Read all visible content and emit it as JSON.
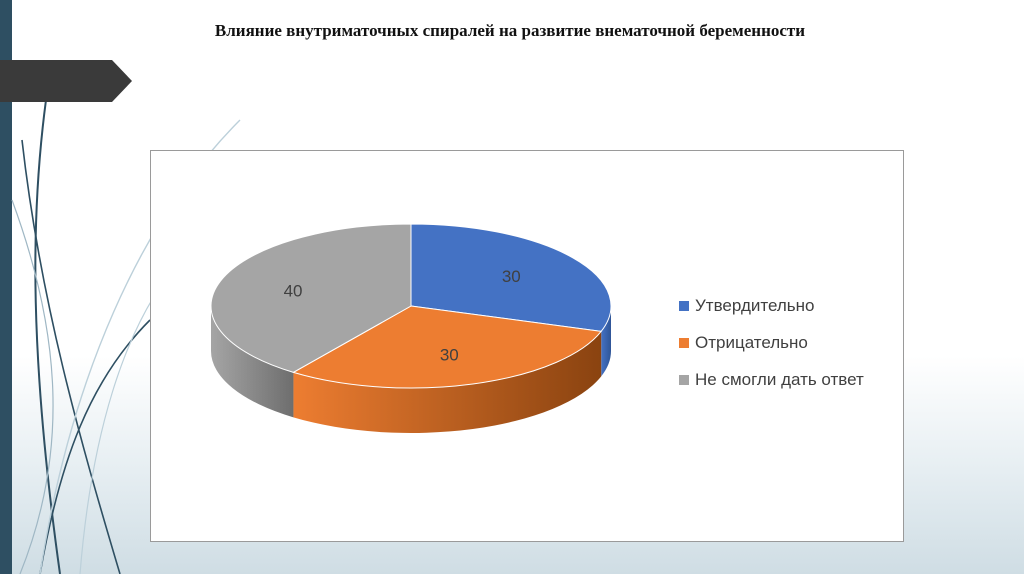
{
  "title": "Влияние внутриматочных спиралей на развитие внематочной беременности",
  "colors": {
    "series": [
      "#4472c4",
      "#ed7d31",
      "#a5a5a5"
    ],
    "series_dark": [
      "#2f5597",
      "#8a4310",
      "#6e6e6e"
    ],
    "bar": "#2e4f62",
    "tab": "#3a3a3a"
  },
  "chart_data": {
    "type": "pie",
    "style": "3d",
    "title": "",
    "categories": [
      "Утвердительно",
      "Отрицательно",
      "Не смогли дать ответ"
    ],
    "values": [
      30,
      30,
      40
    ],
    "data_labels": [
      "30",
      "30",
      "40"
    ],
    "legend": "right",
    "start_angle": "top, clockwise"
  }
}
